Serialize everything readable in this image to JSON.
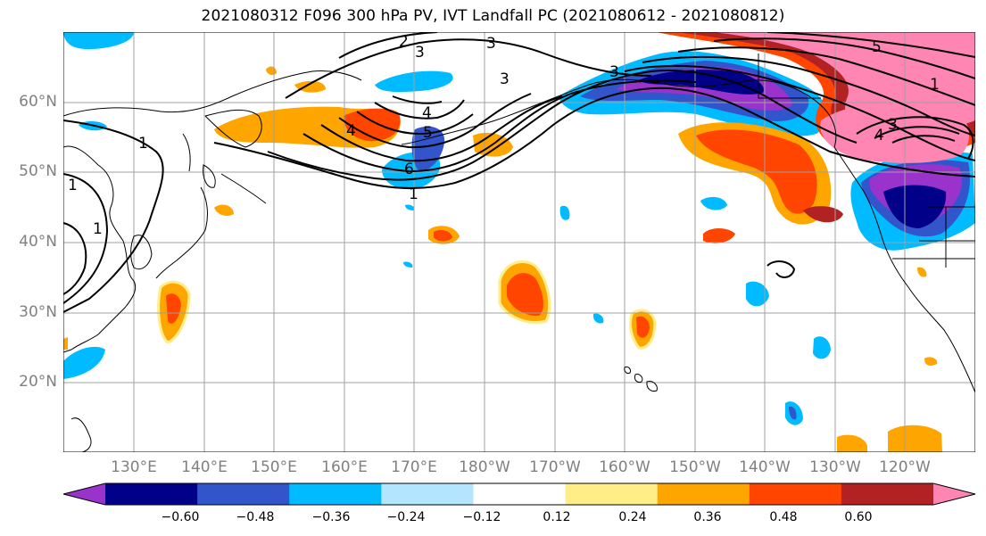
{
  "title": "2021080312 F096 300 hPa PV, IVT Landfall PC (2021080612 - 2021080812)",
  "lat_labels": [
    "60°N",
    "50°N",
    "40°N",
    "30°N",
    "20°N"
  ],
  "lon_labels": [
    "130°E",
    "140°E",
    "150°E",
    "160°E",
    "170°E",
    "180°W",
    "170°W",
    "160°W",
    "150°W",
    "140°W",
    "130°W",
    "120°W"
  ],
  "colorbar": {
    "tick_labels": [
      "−0.60",
      "−0.48",
      "−0.36",
      "−0.24",
      "−0.12",
      "0.12",
      "0.24",
      "0.36",
      "0.48",
      "0.60"
    ],
    "colors": [
      "#9933CC",
      "#000088",
      "#3355CC",
      "#00BBFF",
      "#B3E5FF",
      "#FFFFFF",
      "#FFEE88",
      "#FFA500",
      "#FF4500",
      "#B22222",
      "#FF85B3"
    ]
  },
  "pv_contour_labels": [
    "1",
    "1",
    "1",
    "1",
    "2",
    "3",
    "3",
    "3",
    "4",
    "4",
    "5",
    "6",
    "1",
    "3",
    "4",
    "5",
    "3"
  ]
}
